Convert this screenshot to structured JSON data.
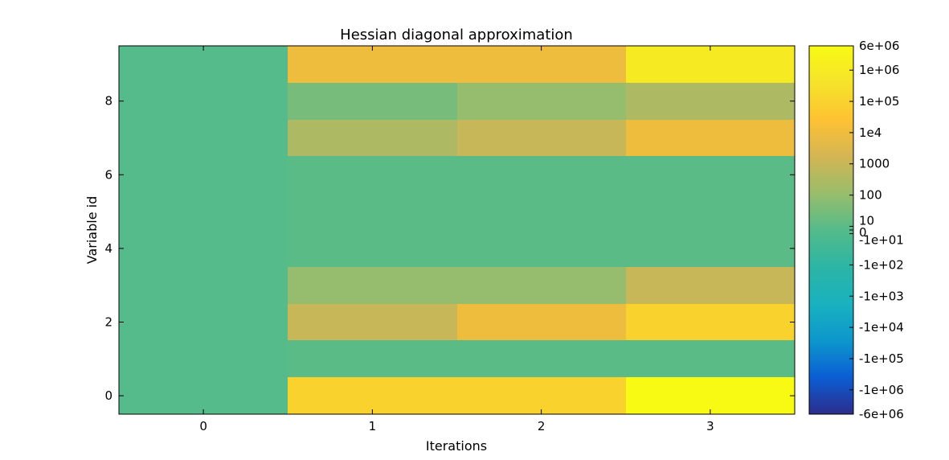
{
  "chart_data": {
    "type": "heatmap",
    "title": "Hessian diagonal approximation",
    "xlabel": "Iterations",
    "ylabel": "Variable id",
    "x_ticks": [
      0,
      1,
      2,
      3
    ],
    "y_ticks": [
      0,
      2,
      4,
      6,
      8
    ],
    "xlim": [
      -0.5,
      3.5
    ],
    "ylim": [
      -0.5,
      9.5
    ],
    "variable_ids": [
      0,
      1,
      2,
      3,
      4,
      5,
      6,
      7,
      8,
      9
    ],
    "iterations": [
      0,
      1,
      2,
      3
    ],
    "values": [
      [
        1,
        100000,
        100000,
        6000000
      ],
      [
        1,
        10,
        10,
        10
      ],
      [
        1,
        1000,
        10000,
        100000
      ],
      [
        1,
        100,
        100,
        1000
      ],
      [
        1,
        10,
        10,
        10
      ],
      [
        1,
        10,
        10,
        10
      ],
      [
        1,
        10,
        10,
        10
      ],
      [
        1,
        300,
        1000,
        10000
      ],
      [
        1,
        30,
        100,
        300
      ],
      [
        1,
        10000,
        10000,
        1000000
      ]
    ],
    "colorbar": {
      "scale": "symmetric log",
      "range": [
        -6000000,
        6000000
      ],
      "tick_labels": [
        "6e+06",
        "1e+06",
        "1e+05",
        "1e4",
        "1000",
        "100",
        "10",
        "0",
        "-1e+01",
        "-1e+02",
        "-1e+03",
        "-1e+04",
        "-1e+05",
        "-1e+06",
        "-6e+06"
      ],
      "tick_values": [
        6000000,
        1000000,
        100000,
        10000,
        1000,
        100,
        10,
        0,
        -10,
        -100,
        -1000,
        -10000,
        -100000,
        -1000000,
        -6000000
      ],
      "colormap_stops": [
        "#2c2d8c",
        "#0b5ed3",
        "#0c97cc",
        "#19b2c0",
        "#2cb5a4",
        "#54bb8a",
        "#99bd6b",
        "#d4b554",
        "#fec232",
        "#f5e32a",
        "#f9fa14"
      ]
    }
  }
}
